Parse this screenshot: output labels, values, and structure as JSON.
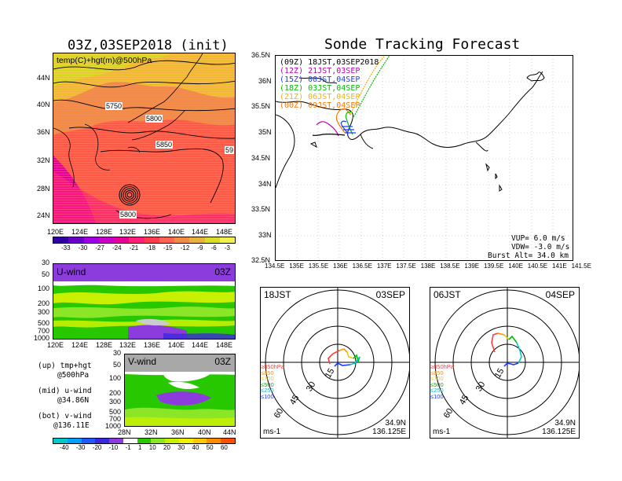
{
  "left": {
    "map_title": "03Z,03SEP2018 (init)",
    "map_label": "temp(C)+hgt(m)@500hPa",
    "contour_labels": [
      "5750",
      "5800",
      "5850",
      "59",
      "5800"
    ],
    "lat_ticks": [
      "44N",
      "40N",
      "36N",
      "32N",
      "28N",
      "24N"
    ],
    "lon_ticks": [
      "120E",
      "124E",
      "128E",
      "132E",
      "136E",
      "140E",
      "144E",
      "148E"
    ],
    "temp_cbar": [
      "-33",
      "-30",
      "-27",
      "-24",
      "-21",
      "-18",
      "-15",
      "-12",
      "-9",
      "-6",
      "-3"
    ],
    "u_label": "U-wind",
    "u_time": "03Z",
    "p_ticks": [
      "30",
      "50",
      "100",
      "200",
      "300",
      "500",
      "700",
      "1000"
    ],
    "v_label": "V-wind",
    "v_time": "03Z",
    "lat_ticks2": [
      "28N",
      "32N",
      "36N",
      "40N",
      "44N"
    ],
    "wind_cbar": [
      "-40",
      "-30",
      "-20",
      "-10",
      "-1",
      "1",
      "10",
      "20",
      "30",
      "40",
      "50",
      "60"
    ],
    "notes": [
      {
        "a": "(up) tmp+hgt",
        "b": "@500hPa"
      },
      {
        "a": "(mid) u-wind",
        "b": "@34.86N"
      },
      {
        "a": "(bot) v-wind",
        "b": "@136.11E"
      }
    ]
  },
  "right": {
    "title": "Sonde Tracking Forecast",
    "legend": [
      {
        "code": "(09Z)",
        "time": "18JST,03SEP2018",
        "color": "#000000"
      },
      {
        "code": "(12Z)",
        "time": "21JST,03SEP",
        "color": "#c000c0"
      },
      {
        "code": "(15Z)",
        "time": "00JST,04SEP",
        "color": "#1e3cff"
      },
      {
        "code": "(18Z)",
        "time": "03JST,04SEP",
        "color": "#00c000"
      },
      {
        "code": "(21Z)",
        "time": "06JST,04SEP",
        "color": "#f0b400"
      },
      {
        "code": "(00Z)",
        "time": "09JST,04SEP",
        "color": "#ff7800"
      }
    ],
    "lat_ticks": [
      "36.5N",
      "36N",
      "35.5N",
      "35N",
      "34.5N",
      "34N",
      "33.5N",
      "33N",
      "32.5N"
    ],
    "lon_ticks": [
      "134.5E",
      "135E",
      "135.5E",
      "136E",
      "136.5E",
      "137E",
      "137.5E",
      "138E",
      "138.5E",
      "139E",
      "139.5E",
      "140E",
      "140.5E",
      "141E",
      "141.5E"
    ],
    "params": [
      "VUP=  6.0 m/s",
      "VDW= -3.0 m/s",
      "Burst Alt= 34.0 km"
    ],
    "hodo1": {
      "time": "18JST",
      "date": "03SEP",
      "lat": "34.9N",
      "lon": "136.125E",
      "units": "ms-1"
    },
    "hodo2": {
      "time": "06JST",
      "date": "04SEP",
      "lat": "34.9N",
      "lon": "136.125E",
      "units": "ms-1"
    },
    "ring_labels": [
      "15",
      "30",
      "45",
      "60"
    ],
    "hodo_legend": [
      {
        "t": "≥850hPa",
        "c": "#ff3c3c"
      },
      {
        "t": "≤850",
        "c": "#ff9600"
      },
      {
        "t": "≤700",
        "c": "#f0c800"
      },
      {
        "t": "≤500",
        "c": "#00c000"
      },
      {
        "t": "≤250",
        "c": "#00c8c8"
      },
      {
        "t": "≤100",
        "c": "#1e3cff"
      }
    ]
  },
  "colors": {
    "temp_cbar": [
      "#3200a0",
      "#6a00c8",
      "#a000e6",
      "#c800c8",
      "#e6009a",
      "#ff1e78",
      "#ff3c50",
      "#ff6450",
      "#f08c46",
      "#e6b43c",
      "#dcdc28"
    ],
    "wind_cbar": [
      "#00c8c8",
      "#00a0ff",
      "#1e5aff",
      "#3c28dc",
      "#8c3cdc",
      "#ffffff",
      "#28c800",
      "#8ce628",
      "#c8f000",
      "#f0f000",
      "#ffc800",
      "#ff8c00",
      "#ff5000"
    ]
  }
}
